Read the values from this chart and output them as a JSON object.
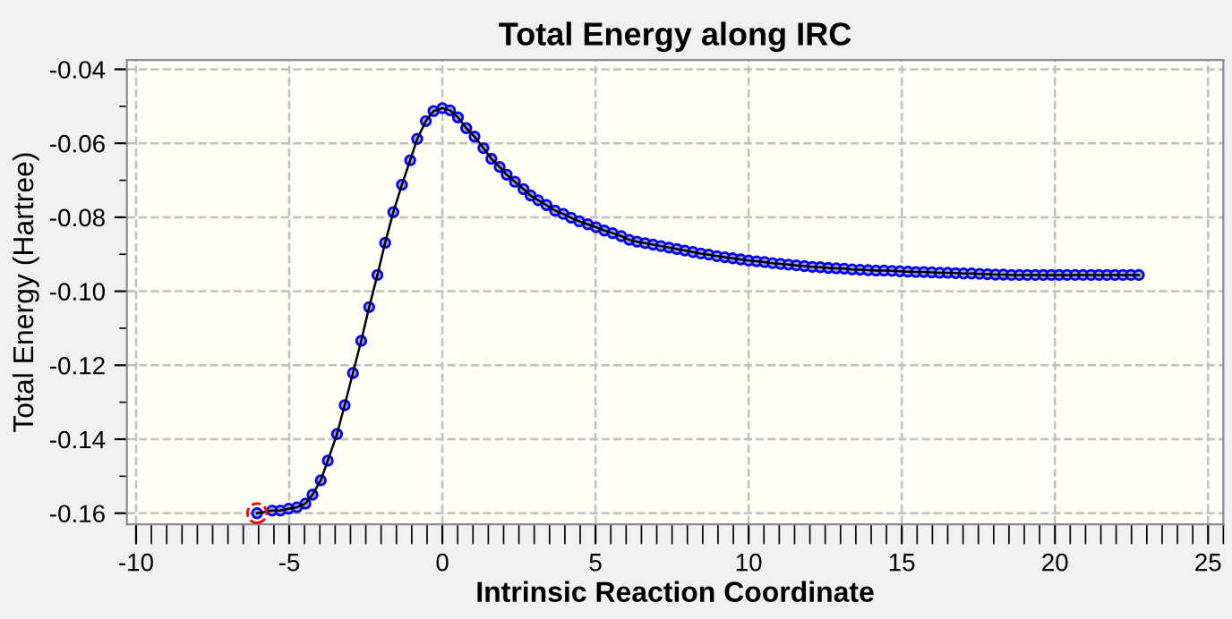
{
  "chart_data": {
    "type": "line",
    "title": "Total Energy along IRC",
    "xlabel": "Intrinsic Reaction Coordinate",
    "ylabel": "Total Energy (Hartree)",
    "xlim": [
      -10.3,
      25.5
    ],
    "ylim": [
      -0.163,
      -0.0375
    ],
    "xticks": [
      -10,
      -5,
      0,
      5,
      10,
      15,
      20,
      25
    ],
    "yticks": [
      {
        "value": -0.16,
        "label": "-0.16"
      },
      {
        "value": -0.14,
        "label": "-0.14"
      },
      {
        "value": -0.12,
        "label": "-0.12"
      },
      {
        "value": -0.1,
        "label": "-0.10"
      },
      {
        "value": -0.08,
        "label": "-0.08"
      },
      {
        "value": -0.06,
        "label": "-0.06"
      },
      {
        "value": -0.04,
        "label": "-0.04"
      }
    ],
    "grid": true,
    "marker": "circle",
    "line_style": "solid",
    "series": [
      {
        "color": "#0000ff",
        "x": [
          -6.05,
          -5.56,
          -5.29,
          -5.02,
          -4.75,
          -4.47,
          -4.24,
          -3.97,
          -3.74,
          -3.44,
          -3.19,
          -2.92,
          -2.65,
          -2.39,
          -2.12,
          -1.87,
          -1.6,
          -1.32,
          -1.05,
          -0.82,
          -0.54,
          -0.29,
          0.0,
          0.25,
          0.51,
          0.78,
          1.05,
          1.34,
          1.6,
          1.87,
          2.1,
          2.37,
          2.65,
          2.88,
          3.13,
          3.4,
          3.68,
          3.95,
          4.2,
          4.47,
          4.75,
          5.02,
          5.29,
          5.56,
          5.84,
          6.1,
          6.36,
          6.62,
          6.88,
          7.14,
          7.4,
          7.66,
          7.92,
          8.18,
          8.44,
          8.7,
          8.96,
          9.22,
          9.48,
          9.74,
          10.0,
          10.26,
          10.52,
          10.78,
          11.04,
          11.3,
          11.56,
          11.82,
          12.08,
          12.34,
          12.6,
          12.86,
          13.12,
          13.38,
          13.64,
          13.9,
          14.16,
          14.42,
          14.68,
          14.94,
          15.2,
          15.46,
          15.72,
          15.98,
          16.24,
          16.5,
          16.76,
          17.02,
          17.28,
          17.54,
          17.8,
          18.06,
          18.32,
          18.58,
          18.84,
          19.1,
          19.36,
          19.62,
          19.88,
          20.14,
          20.4,
          20.66,
          20.92,
          21.18,
          21.44,
          21.7,
          21.96,
          22.22,
          22.48,
          22.74
        ],
        "values": [
          -0.16,
          -0.1593,
          -0.1593,
          -0.1588,
          -0.1584,
          -0.1574,
          -0.155,
          -0.1511,
          -0.1458,
          -0.1386,
          -0.1308,
          -0.1221,
          -0.1134,
          -0.1043,
          -0.0956,
          -0.0869,
          -0.0786,
          -0.0712,
          -0.0646,
          -0.0588,
          -0.054,
          -0.0513,
          -0.0505,
          -0.0511,
          -0.053,
          -0.0559,
          -0.0582,
          -0.0613,
          -0.0642,
          -0.0664,
          -0.0685,
          -0.0704,
          -0.0724,
          -0.0741,
          -0.0754,
          -0.0767,
          -0.0782,
          -0.0791,
          -0.0801,
          -0.0811,
          -0.0819,
          -0.0827,
          -0.0836,
          -0.0843,
          -0.0851,
          -0.0861,
          -0.0866,
          -0.087,
          -0.0874,
          -0.0878,
          -0.0882,
          -0.0886,
          -0.089,
          -0.0894,
          -0.0898,
          -0.0901,
          -0.0905,
          -0.0908,
          -0.0911,
          -0.0914,
          -0.0917,
          -0.0919,
          -0.0921,
          -0.0924,
          -0.0926,
          -0.0928,
          -0.093,
          -0.0932,
          -0.0934,
          -0.0935,
          -0.0937,
          -0.0938,
          -0.0939,
          -0.0941,
          -0.0942,
          -0.0943,
          -0.0944,
          -0.0944,
          -0.0945,
          -0.0946,
          -0.0947,
          -0.0948,
          -0.0948,
          -0.0949,
          -0.095,
          -0.095,
          -0.0951,
          -0.0952,
          -0.0952,
          -0.0953,
          -0.0954,
          -0.0955,
          -0.0955,
          -0.0956,
          -0.0956,
          -0.0956,
          -0.0956,
          -0.0956,
          -0.0956,
          -0.0956,
          -0.0956,
          -0.0956,
          -0.0956,
          -0.0956,
          -0.0956,
          -0.0956,
          -0.0956,
          -0.0956,
          -0.0956,
          -0.0956
        ]
      },
      {
        "type": "scatter",
        "color": "#ff0000",
        "x": [
          -6.05
        ],
        "values": [
          -0.16
        ]
      }
    ]
  }
}
